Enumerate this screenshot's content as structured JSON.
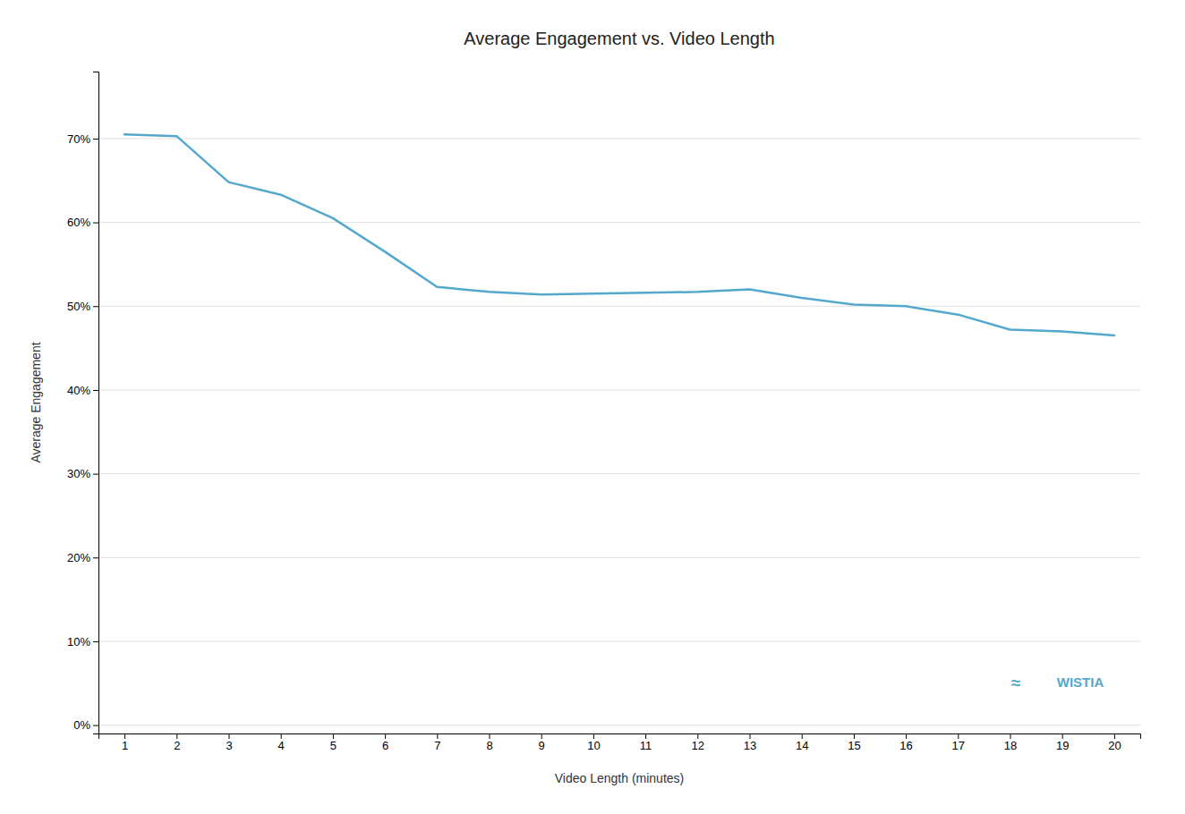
{
  "chart_data": {
    "type": "line",
    "title": "Average Engagement vs. Video Length",
    "xlabel": "Video Length (minutes)",
    "ylabel": "Average Engagement",
    "x": [
      1,
      2,
      3,
      4,
      5,
      6,
      7,
      8,
      9,
      10,
      11,
      12,
      13,
      14,
      15,
      16,
      17,
      18,
      19,
      20
    ],
    "values": [
      0.705,
      0.703,
      0.648,
      0.633,
      0.605,
      0.565,
      0.523,
      0.517,
      0.514,
      0.515,
      0.516,
      0.517,
      0.52,
      0.51,
      0.502,
      0.5,
      0.49,
      0.472,
      0.47,
      0.465
    ],
    "color": "#54A8CC",
    "xlim": [
      0.5,
      20.5
    ],
    "xticks": [
      1,
      2,
      3,
      4,
      5,
      6,
      7,
      8,
      9,
      10,
      11,
      12,
      13,
      14,
      15,
      16,
      17,
      18,
      19,
      20
    ],
    "ylim": [
      -0.01,
      0.78
    ],
    "yticks": [
      {
        "value": 0.0,
        "label": "0%"
      },
      {
        "value": 0.1,
        "label": "10%"
      },
      {
        "value": 0.2,
        "label": "20%"
      },
      {
        "value": 0.3,
        "label": "30%"
      },
      {
        "value": 0.4,
        "label": "40%"
      },
      {
        "value": 0.5,
        "label": "50%"
      },
      {
        "value": 0.6,
        "label": "60%"
      },
      {
        "value": 0.7,
        "label": "70%"
      }
    ],
    "grid": "y",
    "annotations": [
      "WISTIA",
      "≈"
    ]
  }
}
